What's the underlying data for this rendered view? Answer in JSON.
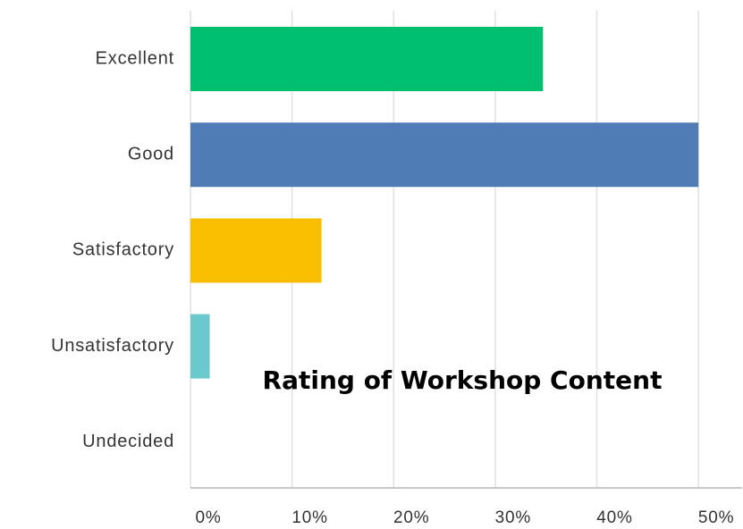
{
  "chart_data": {
    "type": "bar",
    "orientation": "horizontal",
    "title": "Rating of Workshop Content",
    "categories": [
      "Excellent",
      "Good",
      "Satisfactory",
      "Unsatisfactory",
      "Undecided"
    ],
    "values": [
      34.7,
      50,
      12.9,
      1.9,
      0
    ],
    "colors": [
      "#00bf6f",
      "#507cb6",
      "#f9be00",
      "#6bc8cd",
      "#a0a0a0"
    ],
    "xlim": [
      0,
      54.3
    ],
    "xticks": [
      {
        "value": 0,
        "label": "0%"
      },
      {
        "value": 10,
        "label": "10%"
      },
      {
        "value": 20,
        "label": "20%"
      },
      {
        "value": 30,
        "label": "30%"
      },
      {
        "value": 40,
        "label": "40%"
      },
      {
        "value": 50,
        "label": "50%"
      }
    ],
    "grid": true
  }
}
